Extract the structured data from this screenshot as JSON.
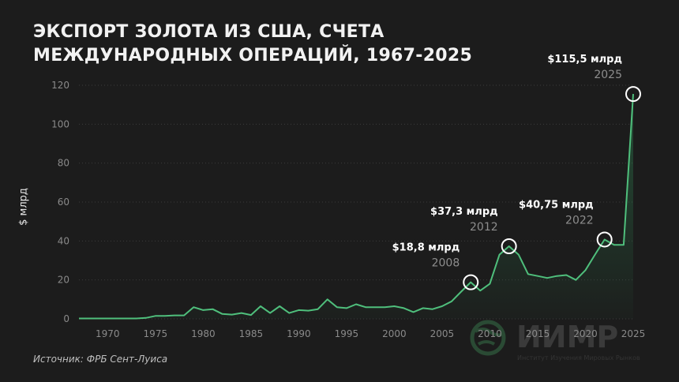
{
  "title": "ЭКСПОРТ ЗОЛОТА ИЗ США, СЧЕТА МЕЖДУНАРОДНЫХ ОПЕРАЦИЙ, 1967-2025",
  "source": "Источник: ФРБ Сент-Луиса",
  "watermark": {
    "name": "ИИМР",
    "subtitle": "Институт Изучения Мировых Рынков"
  },
  "colors": {
    "background": "#1c1c1c",
    "line": "#4fbf7c",
    "grid": "#3b3b3b",
    "text": "#ffffff"
  },
  "chart_data": {
    "type": "area",
    "ylabel": "$ млрд",
    "ylim": [
      0,
      120
    ],
    "xlim": [
      1967,
      2025
    ],
    "yticks": [
      0,
      20,
      40,
      60,
      80,
      100,
      120
    ],
    "xticks": [
      1970,
      1975,
      1980,
      1985,
      1990,
      1995,
      2000,
      2005,
      2010,
      2015,
      2020,
      2025
    ],
    "grid": "horizontal",
    "x": [
      1967,
      1968,
      1969,
      1970,
      1971,
      1972,
      1973,
      1974,
      1975,
      1976,
      1977,
      1978,
      1979,
      1980,
      1981,
      1982,
      1983,
      1984,
      1985,
      1986,
      1987,
      1988,
      1989,
      1990,
      1991,
      1992,
      1993,
      1994,
      1995,
      1996,
      1997,
      1998,
      1999,
      2000,
      2001,
      2002,
      2003,
      2004,
      2005,
      2006,
      2007,
      2008,
      2009,
      2010,
      2011,
      2012,
      2013,
      2014,
      2015,
      2016,
      2017,
      2018,
      2019,
      2020,
      2021,
      2022,
      2023,
      2024,
      2025
    ],
    "values": [
      0.2,
      0.2,
      0.2,
      0.2,
      0.2,
      0.2,
      0.2,
      0.5,
      1.5,
      1.5,
      1.8,
      1.8,
      6.0,
      4.5,
      5.0,
      2.5,
      2.2,
      3.0,
      2.0,
      6.5,
      3.0,
      6.5,
      3.0,
      4.5,
      4.2,
      5.0,
      10.0,
      6.0,
      5.5,
      7.5,
      6.0,
      6.0,
      6.0,
      6.5,
      5.5,
      3.5,
      5.5,
      5.0,
      6.5,
      9.0,
      14.0,
      18.8,
      14.5,
      18.0,
      33.0,
      37.3,
      33.0,
      23.0,
      22.0,
      21.0,
      22.0,
      22.5,
      20.0,
      25.0,
      33.0,
      40.75,
      38.0,
      38.0,
      115.5
    ],
    "annotations": [
      {
        "x": 2008,
        "y": 18.8,
        "value": "$18,8 млрд",
        "year": "2008"
      },
      {
        "x": 2012,
        "y": 37.3,
        "value": "$37,3 млрд",
        "year": "2012"
      },
      {
        "x": 2022,
        "y": 40.75,
        "value": "$40,75 млрд",
        "year": "2022"
      },
      {
        "x": 2025,
        "y": 115.5,
        "value": "$115,5 млрд",
        "year": "2025"
      }
    ]
  }
}
